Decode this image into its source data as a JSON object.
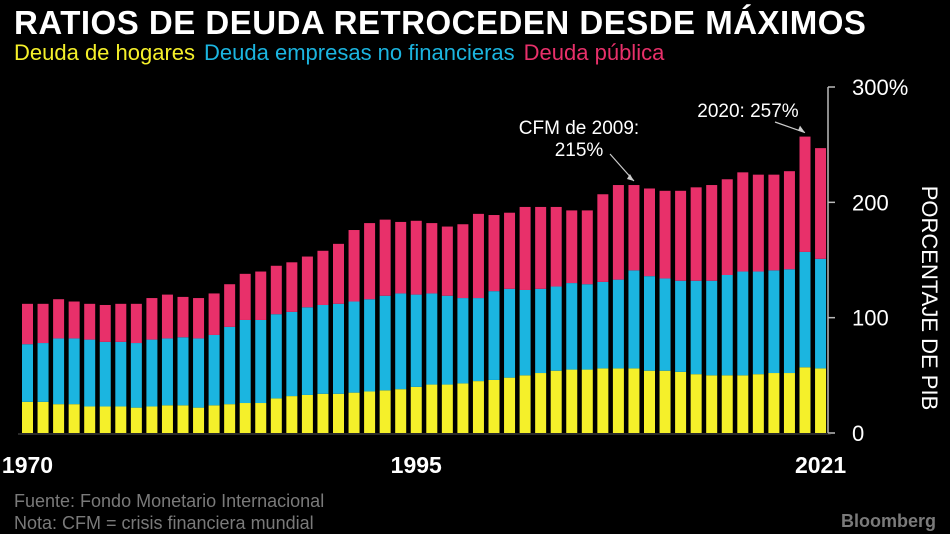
{
  "title": "RATIOS DE DEUDA RETROCEDEN DESDE MÁXIMOS",
  "legend": [
    {
      "label": "Deuda de hogares",
      "color": "#F5F02A"
    },
    {
      "label": "Deuda empresas no financieras",
      "color": "#1BB5E0"
    },
    {
      "label": "Deuda pública",
      "color": "#E8306A"
    }
  ],
  "source": "Fuente: Fondo Monetario Internacional",
  "note": "Nota:  CFM = crisis financiera mundial",
  "brand": "Bloomberg",
  "chart_data": {
    "type": "bar",
    "stacked": true,
    "x": [
      1970,
      1971,
      1972,
      1973,
      1974,
      1975,
      1976,
      1977,
      1978,
      1979,
      1980,
      1981,
      1982,
      1983,
      1984,
      1985,
      1986,
      1987,
      1988,
      1989,
      1990,
      1991,
      1992,
      1993,
      1994,
      1995,
      1996,
      1997,
      1998,
      1999,
      2000,
      2001,
      2002,
      2003,
      2004,
      2005,
      2006,
      2007,
      2008,
      2009,
      2010,
      2011,
      2012,
      2013,
      2014,
      2015,
      2016,
      2017,
      2018,
      2019,
      2020,
      2021
    ],
    "x_tick_labels": [
      "1970",
      "1995",
      "2021"
    ],
    "series": [
      {
        "name": "Deuda de hogares",
        "color": "#F5F02A",
        "values": [
          27,
          27,
          25,
          25,
          23,
          23,
          23,
          22,
          23,
          24,
          24,
          22,
          24,
          25,
          26,
          26,
          30,
          32,
          33,
          34,
          34,
          35,
          36,
          37,
          38,
          40,
          42,
          42,
          43,
          45,
          46,
          48,
          50,
          52,
          54,
          55,
          55,
          56,
          56,
          56,
          54,
          54,
          53,
          51,
          50,
          50,
          50,
          51,
          52,
          52,
          57,
          56
        ]
      },
      {
        "name": "Deuda empresas no financieras",
        "color": "#1BB5E0",
        "values": [
          50,
          51,
          57,
          57,
          58,
          56,
          56,
          56,
          58,
          58,
          59,
          60,
          61,
          67,
          72,
          72,
          73,
          73,
          76,
          77,
          78,
          79,
          80,
          82,
          83,
          80,
          79,
          77,
          74,
          72,
          77,
          77,
          74,
          73,
          73,
          75,
          74,
          75,
          77,
          85,
          82,
          80,
          79,
          81,
          82,
          87,
          90,
          89,
          89,
          90,
          100,
          95
        ]
      },
      {
        "name": "Deuda pública",
        "color": "#E8306A",
        "values": [
          35,
          34,
          34,
          32,
          31,
          32,
          33,
          34,
          36,
          38,
          35,
          35,
          36,
          37,
          40,
          42,
          42,
          43,
          44,
          47,
          52,
          62,
          66,
          66,
          62,
          64,
          61,
          60,
          64,
          73,
          66,
          66,
          72,
          71,
          69,
          63,
          64,
          76,
          82,
          74,
          76,
          76,
          78,
          81,
          83,
          83,
          86,
          84,
          83,
          85,
          100,
          96
        ]
      }
    ],
    "ylim": [
      0,
      300
    ],
    "yticks": [
      "0",
      "100",
      "200",
      "300%"
    ],
    "ylabel": "PORCENTAJE DE PIB",
    "annotations": [
      {
        "text_line1": "CFM de 2009:",
        "text_line2": "215%",
        "x": 2009,
        "y": 215
      },
      {
        "text": "2020: 257%",
        "x": 2020,
        "y": 257
      }
    ]
  }
}
